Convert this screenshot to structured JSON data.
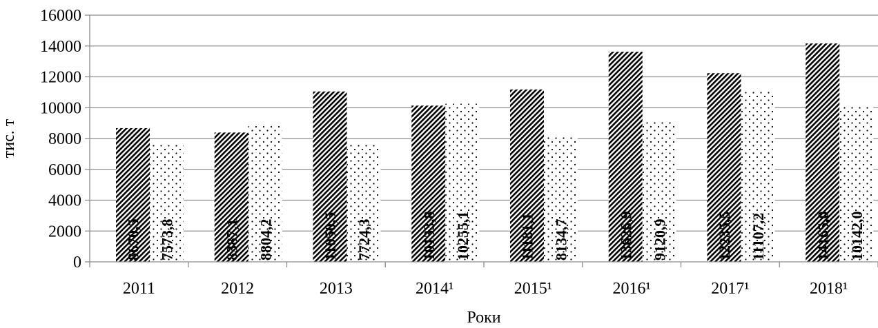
{
  "chart_data": {
    "type": "bar",
    "title": "",
    "xlabel": "Роки",
    "ylabel": "тис. т",
    "ylim": [
      0,
      16000
    ],
    "yticks": [
      "0",
      "2000",
      "4000",
      "6000",
      "8000",
      "10000",
      "12000",
      "14000",
      "16000"
    ],
    "categories": [
      "2011",
      "2012",
      "2013",
      "2014¹",
      "2015¹",
      "2016¹",
      "2017¹",
      "2018¹"
    ],
    "grid": true,
    "legend": "none",
    "series": [
      {
        "pattern": "diagonal-hatch",
        "values": [
          8670.5,
          8387.1,
          11050.5,
          10133.8,
          11181.1,
          13626.9,
          12235.5,
          14165.0
        ],
        "labels": [
          "8670,5",
          "8387,1",
          "11050,5",
          "10133,8",
          "11181,1",
          "13626,9",
          "12235,5",
          "14165,0"
        ]
      },
      {
        "pattern": "dots",
        "values": [
          7573.8,
          8804.2,
          7724.3,
          10255.1,
          8134.7,
          9120.9,
          11107.2,
          10142.0
        ],
        "labels": [
          "7573,8",
          "8804,2",
          "7724,3",
          "10255,1",
          "8134,7",
          "9120,9",
          "11107,2",
          "10142,0"
        ]
      }
    ],
    "colors": {
      "bar_fill": "#000000",
      "background": "#ffffff",
      "grid": "#8c8c8c"
    }
  }
}
